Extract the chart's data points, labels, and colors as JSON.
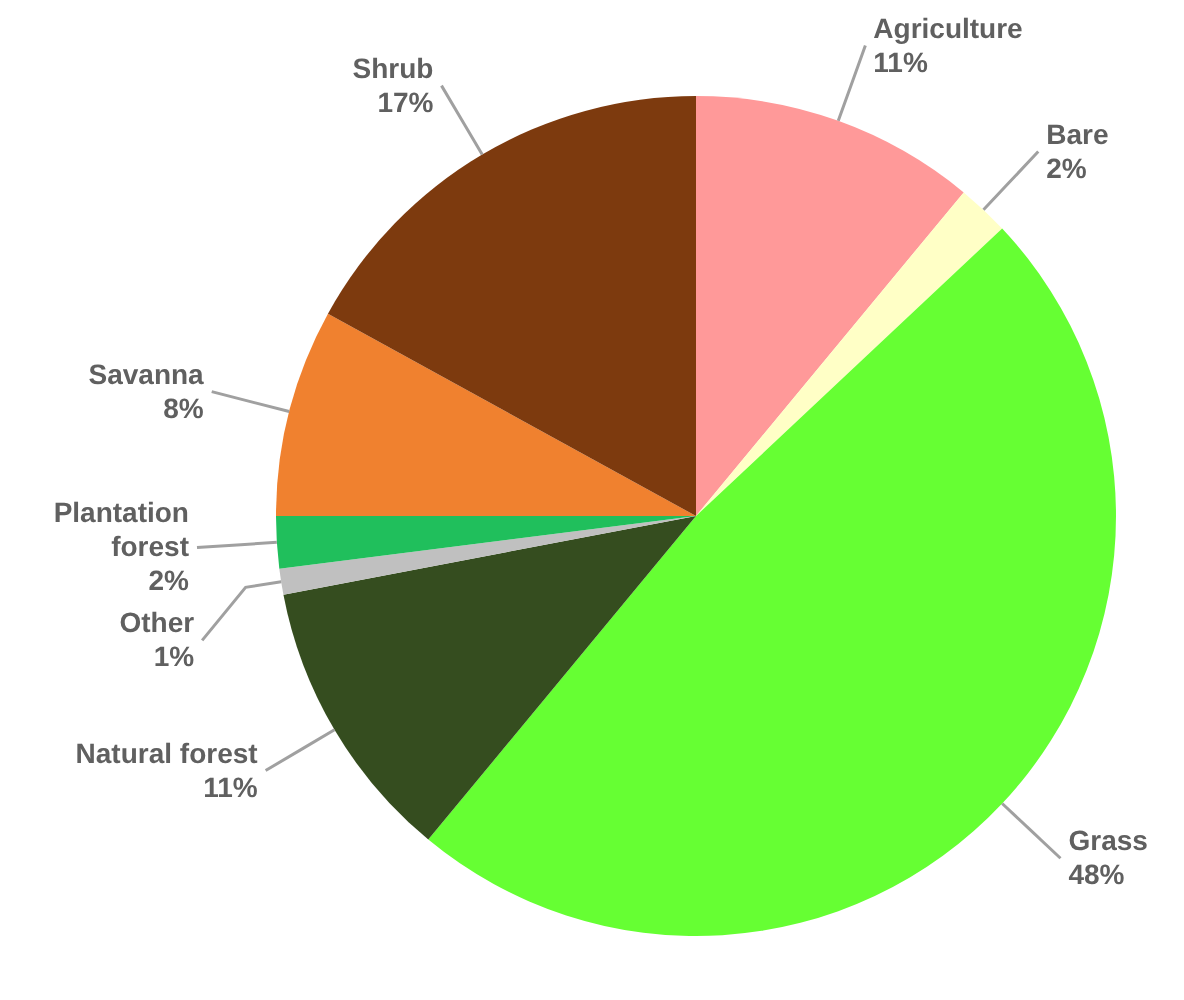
{
  "chart_data": {
    "type": "pie",
    "categories": [
      "Agriculture",
      "Bare",
      "Grass",
      "Natural forest",
      "Other",
      "Plantation forest",
      "Savanna",
      "Shrub"
    ],
    "values": [
      11,
      2,
      48,
      11,
      1,
      2,
      8,
      17
    ],
    "value_labels": [
      "11%",
      "2%",
      "48%",
      "11%",
      "1%",
      "2%",
      "8%",
      "17%"
    ],
    "colors": [
      "#ff9999",
      "#ffffc6",
      "#66ff33",
      "#354d1f",
      "#c0c0c0",
      "#20bf5c",
      "#f0812f",
      "#7d3a0e"
    ]
  }
}
